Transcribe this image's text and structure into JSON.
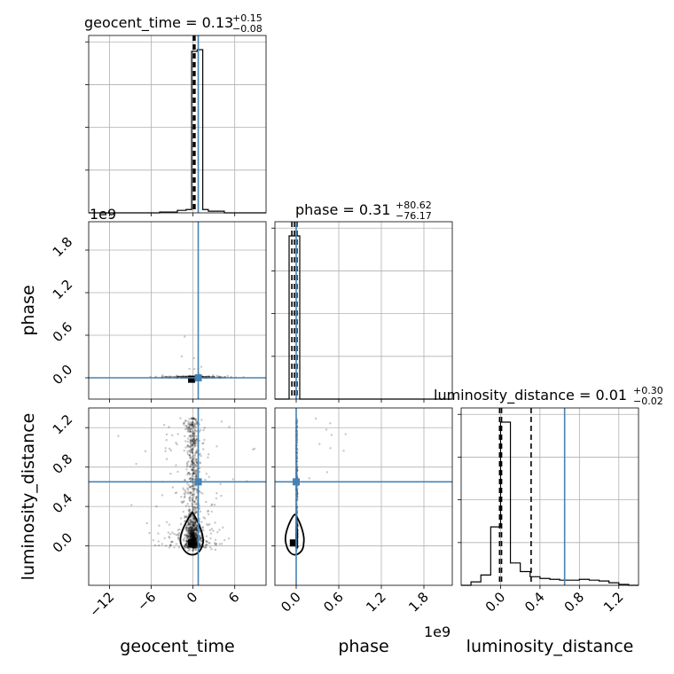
{
  "chart_data": {
    "type": "corner",
    "parameters": [
      "geocent_time",
      "phase",
      "luminosity_distance"
    ],
    "truth_color": "#4682b4",
    "truths": {
      "geocent_time": 0.75,
      "phase": 0.0,
      "luminosity_distance": 0.65
    },
    "titles": {
      "geocent_time": {
        "prefix": "geocent_time = 0.13",
        "plus": "+0.15",
        "minus": "−0.08"
      },
      "phase": {
        "prefix": "phase = 0.31",
        "plus": "+80.62",
        "minus": "−76.17"
      },
      "luminosity_distance": {
        "prefix": "luminosity_distance = 0.01",
        "plus": "+0.30",
        "minus": "−0.02"
      }
    },
    "axis_labels": {
      "x": [
        "geocent_time",
        "phase",
        "luminosity_distance"
      ],
      "y": [
        "phase",
        "luminosity_distance"
      ]
    },
    "offset_text": {
      "phase_y": "1e9",
      "phase_x": "1e9"
    },
    "ticks": {
      "geocent_time": {
        "values": [
          -12,
          -6,
          0,
          6
        ],
        "labels": [
          "−12",
          "−6",
          "0",
          "6"
        ]
      },
      "phase": {
        "values": [
          0.0,
          0.6,
          1.2,
          1.8
        ],
        "labels": [
          "0.0",
          "0.6",
          "1.2",
          "1.8"
        ]
      },
      "luminosity_distance": {
        "values": [
          0.0,
          0.4,
          0.8,
          1.2
        ],
        "labels": [
          "0.0",
          "0.4",
          "0.8",
          "1.2"
        ]
      }
    },
    "ranges": {
      "geocent_time": [
        -15,
        10.5
      ],
      "phase": [
        -0.3,
        2.2
      ],
      "luminosity_distance": [
        -0.4,
        1.4
      ]
    },
    "quantile_lines": {
      "geocent_time": [
        0.05,
        0.13,
        0.28
      ],
      "phase": [
        -76.17,
        0.31,
        80.62
      ],
      "luminosity_distance": [
        -0.01,
        0.01,
        0.31
      ]
    },
    "hist_geocent_time": {
      "bins": [
        -15,
        -12.45,
        -9.9,
        -7.35,
        -4.8,
        -2.25,
        -1.0,
        -0.2,
        0.6,
        1.4,
        2.2,
        4.5,
        7.0,
        10.5
      ],
      "counts": [
        0,
        0,
        0,
        0,
        0.005,
        0.015,
        0.02,
        0.98,
        0.99,
        0.02,
        0.01,
        0.0,
        0.0
      ]
    },
    "hist_phase": {
      "bins": [
        -0.3,
        -0.1,
        0.05,
        0.25,
        0.45,
        0.65,
        0.85,
        1.05,
        1.25,
        1.45,
        1.65,
        1.85,
        2.05,
        2.2
      ],
      "counts": [
        0,
        1.0,
        0,
        0,
        0,
        0,
        0,
        0,
        0,
        0,
        0,
        0,
        0
      ]
    },
    "hist_luminosity_distance": {
      "bins": [
        -0.4,
        -0.3,
        -0.2,
        -0.1,
        0.0,
        0.1,
        0.2,
        0.3,
        0.4,
        0.5,
        0.6,
        0.7,
        0.8,
        0.9,
        1.0,
        1.1,
        1.2,
        1.3,
        1.4
      ],
      "counts": [
        0.0,
        0.02,
        0.06,
        0.34,
        0.95,
        0.13,
        0.08,
        0.05,
        0.04,
        0.035,
        0.03,
        0.03,
        0.035,
        0.03,
        0.025,
        0.015,
        0.005,
        0.0
      ]
    },
    "grid": true
  }
}
